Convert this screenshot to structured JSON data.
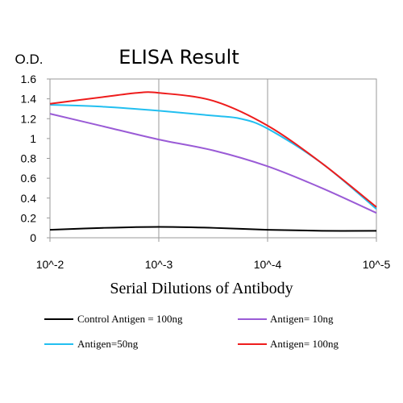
{
  "chart_data": {
    "type": "line",
    "title": "ELISA Result",
    "ylabel": "O.D.",
    "xlabel": "Serial Dilutions of Antibody",
    "x_categories": [
      "10^-2",
      "10^-3",
      "10^-4",
      "10^-5"
    ],
    "y_ticks": [
      "0",
      "0.2",
      "0.4",
      "0.6",
      "0.8",
      "1",
      "1.2",
      "1.4",
      "1.6"
    ],
    "ylim": [
      0,
      1.6
    ],
    "grid": "vertical",
    "legend_position": "bottom",
    "series": [
      {
        "name": "Control Antigen = 100ng",
        "color": "#000000",
        "points": [
          [
            0,
            0.08
          ],
          [
            0.5,
            0.1
          ],
          [
            1,
            0.11
          ],
          [
            1.5,
            0.1
          ],
          [
            2,
            0.08
          ],
          [
            2.5,
            0.07
          ],
          [
            3,
            0.07
          ]
        ]
      },
      {
        "name": "Antigen= 10ng",
        "color": "#9a5bd6",
        "points": [
          [
            0,
            1.25
          ],
          [
            0.5,
            1.12
          ],
          [
            1,
            0.99
          ],
          [
            1.5,
            0.88
          ],
          [
            2,
            0.72
          ],
          [
            2.5,
            0.5
          ],
          [
            3,
            0.25
          ]
        ]
      },
      {
        "name": "Antigen=50ng",
        "color": "#22bff0",
        "points": [
          [
            0,
            1.34
          ],
          [
            0.5,
            1.32
          ],
          [
            1,
            1.28
          ],
          [
            1.5,
            1.23
          ],
          [
            1.75,
            1.2
          ],
          [
            2,
            1.1
          ],
          [
            2.5,
            0.75
          ],
          [
            3,
            0.29
          ]
        ]
      },
      {
        "name": "Antigen= 100ng",
        "color": "#ee1c1c",
        "points": [
          [
            0,
            1.35
          ],
          [
            0.5,
            1.42
          ],
          [
            0.8,
            1.46
          ],
          [
            1,
            1.46
          ],
          [
            1.5,
            1.38
          ],
          [
            2,
            1.13
          ],
          [
            2.5,
            0.75
          ],
          [
            3,
            0.31
          ]
        ]
      }
    ]
  }
}
